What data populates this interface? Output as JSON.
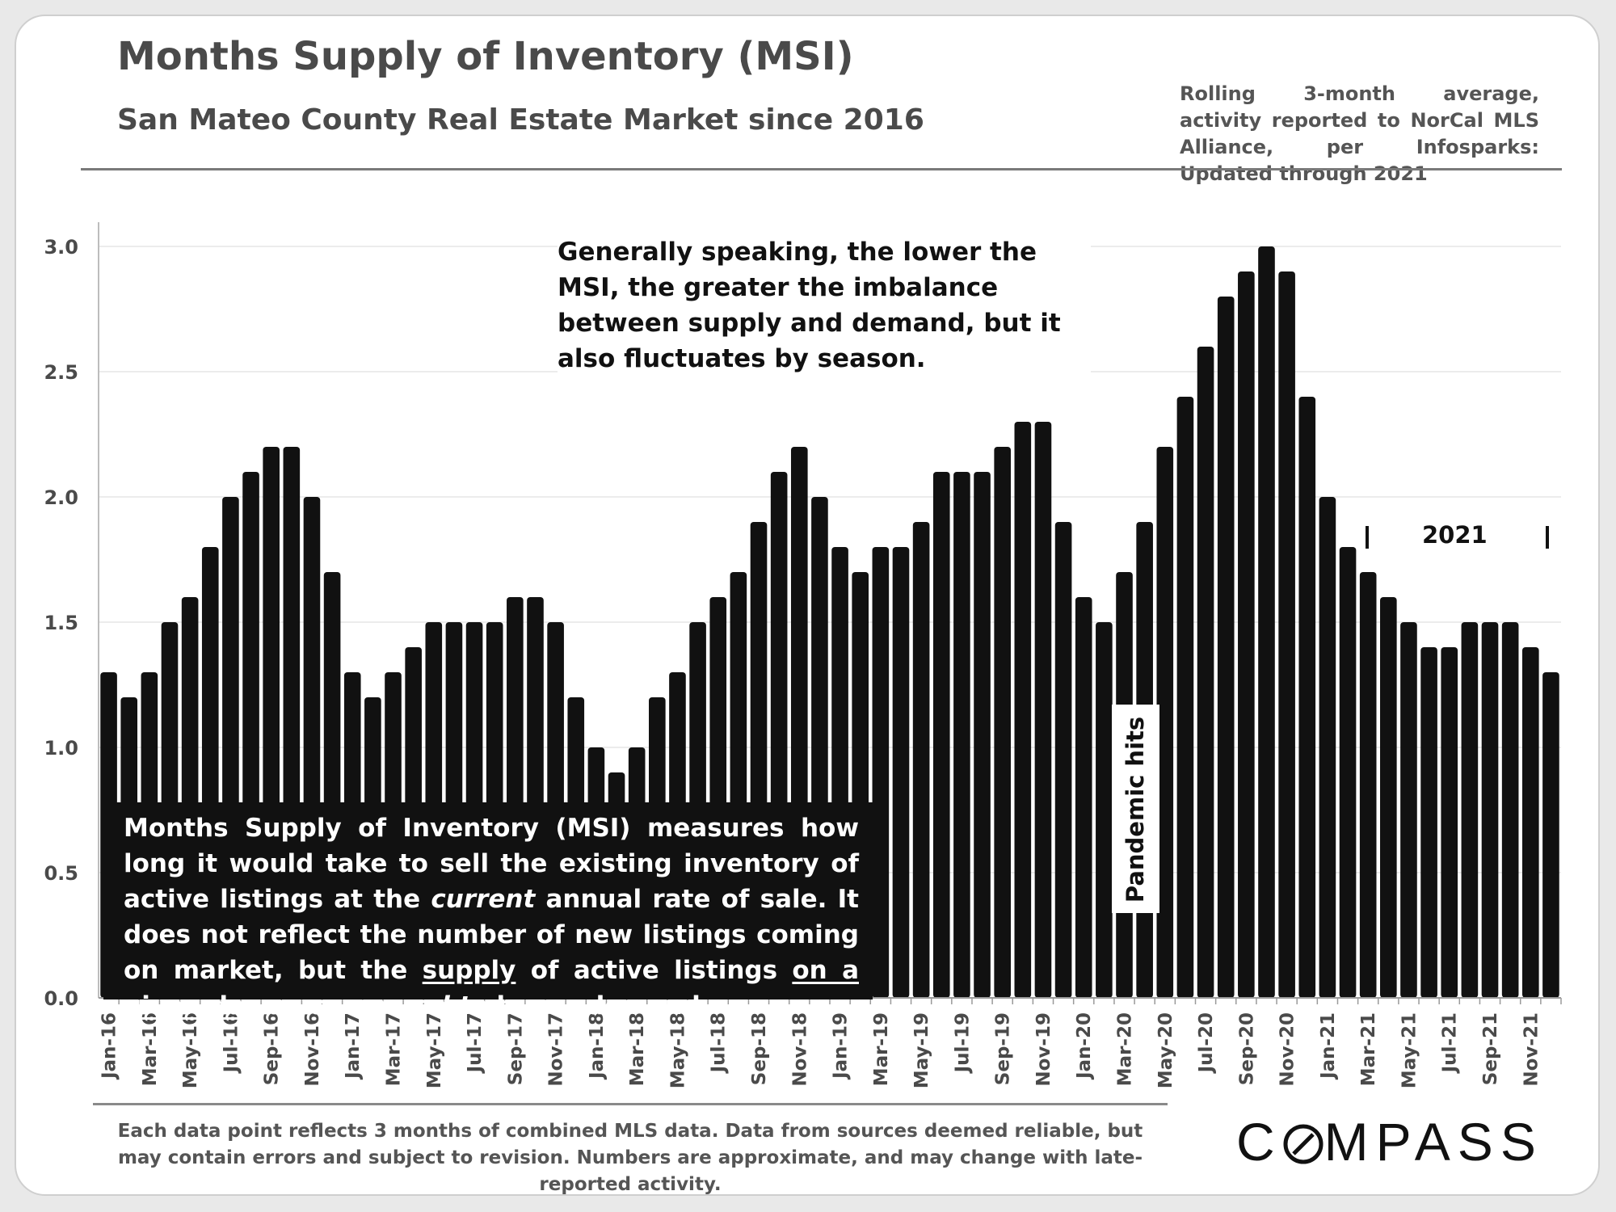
{
  "header": {
    "title": "Months Supply of Inventory (MSI)",
    "subtitle": "San Mateo County Real Estate Market since 2016",
    "source_note": "Rolling 3-month average, activity reported to NorCal MLS Alliance, per Infosparks: Updated through 2021"
  },
  "callout": "Generally speaking, the lower the MSI, the greater the imbalance between supply and demand, but it also fluctuates by season.",
  "definition": {
    "p1": "Months Supply of Inventory (MSI) measures how long it would take to sell the existing inventory of active listings at the ",
    "em1": "current",
    "p2": " annual rate of sale. It does not reflect the number of new listings coming on market, but the ",
    "u1": "supply",
    "p3": " of active listings ",
    "u2": "on a given day",
    "p4": " ",
    "em2": "as compared to",
    "p5": " buyer demand."
  },
  "annotations": {
    "pandemic": "Pandemic hits",
    "year_marker": "2021"
  },
  "footer": {
    "note": "Each data point reflects 3 months of combined MLS data. Data from sources deemed reliable, but may contain errors and subject to revision. Numbers are approximate, and may change with late-reported activity.",
    "logo_left": "C",
    "logo_right": "MPASS"
  },
  "colors": {
    "bar": "#111111",
    "grid": "#e6e6e6",
    "text": "#4a4a4a"
  },
  "chart_data": {
    "type": "bar",
    "title": "Months Supply of Inventory (MSI)",
    "subtitle": "San Mateo County Real Estate Market since 2016",
    "xlabel": "",
    "ylabel": "",
    "ylim": [
      0,
      3.0
    ],
    "yticks": [
      "0.0",
      "0.5",
      "1.0",
      "1.5",
      "2.0",
      "2.5",
      "3.0"
    ],
    "grid": true,
    "categories": [
      "Jan-16",
      "Feb-16",
      "Mar-16",
      "Apr-16",
      "May-16",
      "Jun-16",
      "Jul-16",
      "Aug-16",
      "Sep-16",
      "Oct-16",
      "Nov-16",
      "Dec-16",
      "Jan-17",
      "Feb-17",
      "Mar-17",
      "Apr-17",
      "May-17",
      "Jun-17",
      "Jul-17",
      "Aug-17",
      "Sep-17",
      "Oct-17",
      "Nov-17",
      "Dec-17",
      "Jan-18",
      "Feb-18",
      "Mar-18",
      "Apr-18",
      "May-18",
      "Jun-18",
      "Jul-18",
      "Aug-18",
      "Sep-18",
      "Oct-18",
      "Nov-18",
      "Dec-18",
      "Jan-19",
      "Feb-19",
      "Mar-19",
      "Apr-19",
      "May-19",
      "Jun-19",
      "Jul-19",
      "Aug-19",
      "Sep-19",
      "Oct-19",
      "Nov-19",
      "Dec-19",
      "Jan-20",
      "Feb-20",
      "Mar-20",
      "Apr-20",
      "May-20",
      "Jun-20",
      "Jul-20",
      "Aug-20",
      "Sep-20",
      "Oct-20",
      "Nov-20",
      "Dec-20",
      "Jan-21",
      "Feb-21",
      "Mar-21",
      "Apr-21",
      "May-21",
      "Jun-21",
      "Jul-21",
      "Aug-21",
      "Sep-21",
      "Oct-21",
      "Nov-21",
      "Dec-21"
    ],
    "values": [
      1.3,
      1.2,
      1.3,
      1.5,
      1.6,
      1.8,
      2.0,
      2.1,
      2.2,
      2.2,
      2.0,
      1.7,
      1.3,
      1.2,
      1.3,
      1.4,
      1.5,
      1.5,
      1.5,
      1.5,
      1.6,
      1.6,
      1.5,
      1.2,
      1.0,
      0.9,
      1.0,
      1.2,
      1.3,
      1.5,
      1.6,
      1.7,
      1.9,
      2.1,
      2.2,
      2.0,
      1.8,
      1.7,
      1.8,
      1.8,
      1.9,
      2.1,
      2.1,
      2.1,
      2.2,
      2.3,
      2.3,
      1.9,
      1.6,
      1.5,
      1.7,
      1.9,
      2.2,
      2.4,
      2.6,
      2.8,
      2.9,
      3.0,
      2.9,
      2.4,
      2.0,
      1.8,
      1.7,
      1.6,
      1.5,
      1.4,
      1.4,
      1.5,
      1.5,
      1.5,
      1.4,
      1.3
    ],
    "labeled_ticks_every": 2
  }
}
